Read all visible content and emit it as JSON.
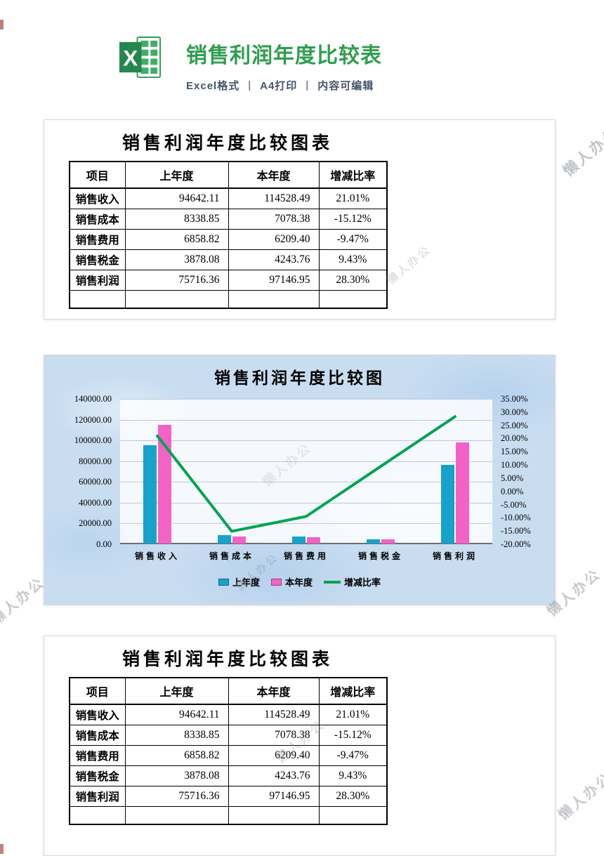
{
  "header": {
    "title": "销售利润年度比较表",
    "meta": [
      "Excel格式",
      "A4打印",
      "内容可编辑"
    ],
    "separator": "|",
    "title_color": "#2f9e4f"
  },
  "table": {
    "title": "销售利润年度比较图表",
    "headers": [
      "项目",
      "上年度",
      "本年度",
      "增减比率"
    ],
    "rows": [
      {
        "item": "销售收入",
        "prev": "94642.11",
        "curr": "114528.49",
        "ratio": "21.01%"
      },
      {
        "item": "销售成本",
        "prev": "8338.85",
        "curr": "7078.38",
        "ratio": "-15.12%"
      },
      {
        "item": "销售费用",
        "prev": "6858.82",
        "curr": "6209.40",
        "ratio": "-9.47%"
      },
      {
        "item": "销售税金",
        "prev": "3878.08",
        "curr": "4243.76",
        "ratio": "9.43%"
      },
      {
        "item": "销售利润",
        "prev": "75716.36",
        "curr": "97146.95",
        "ratio": "28.30%"
      }
    ]
  },
  "chart_data": {
    "type": "bar",
    "subtype": "bar+line combo, dual axis",
    "title": "销售利润年度比较图",
    "categories": [
      "销售收入",
      "销售成本",
      "销售费用",
      "销售税金",
      "销售利润"
    ],
    "series": [
      {
        "name": "上年度",
        "type": "bar",
        "axis": "left",
        "color": "#17a2cc",
        "values": [
          94642.11,
          8338.85,
          6858.82,
          3878.08,
          75716.36
        ]
      },
      {
        "name": "本年度",
        "type": "bar",
        "axis": "left",
        "color": "#f562c6",
        "values": [
          114528.49,
          7078.38,
          6209.4,
          4243.76,
          97146.95
        ]
      },
      {
        "name": "增减比率",
        "type": "line",
        "axis": "right",
        "color": "#00a44f",
        "values": [
          21.01,
          -15.12,
          -9.47,
          9.43,
          28.3
        ]
      }
    ],
    "left_axis": {
      "min": 0,
      "max": 140000,
      "step": 20000,
      "format": "0.00"
    },
    "right_axis": {
      "min": -20,
      "max": 35,
      "step": 5,
      "format": "0.00%"
    },
    "grid": true,
    "legend_position": "bottom"
  },
  "watermark": {
    "text": "懒人办公"
  }
}
